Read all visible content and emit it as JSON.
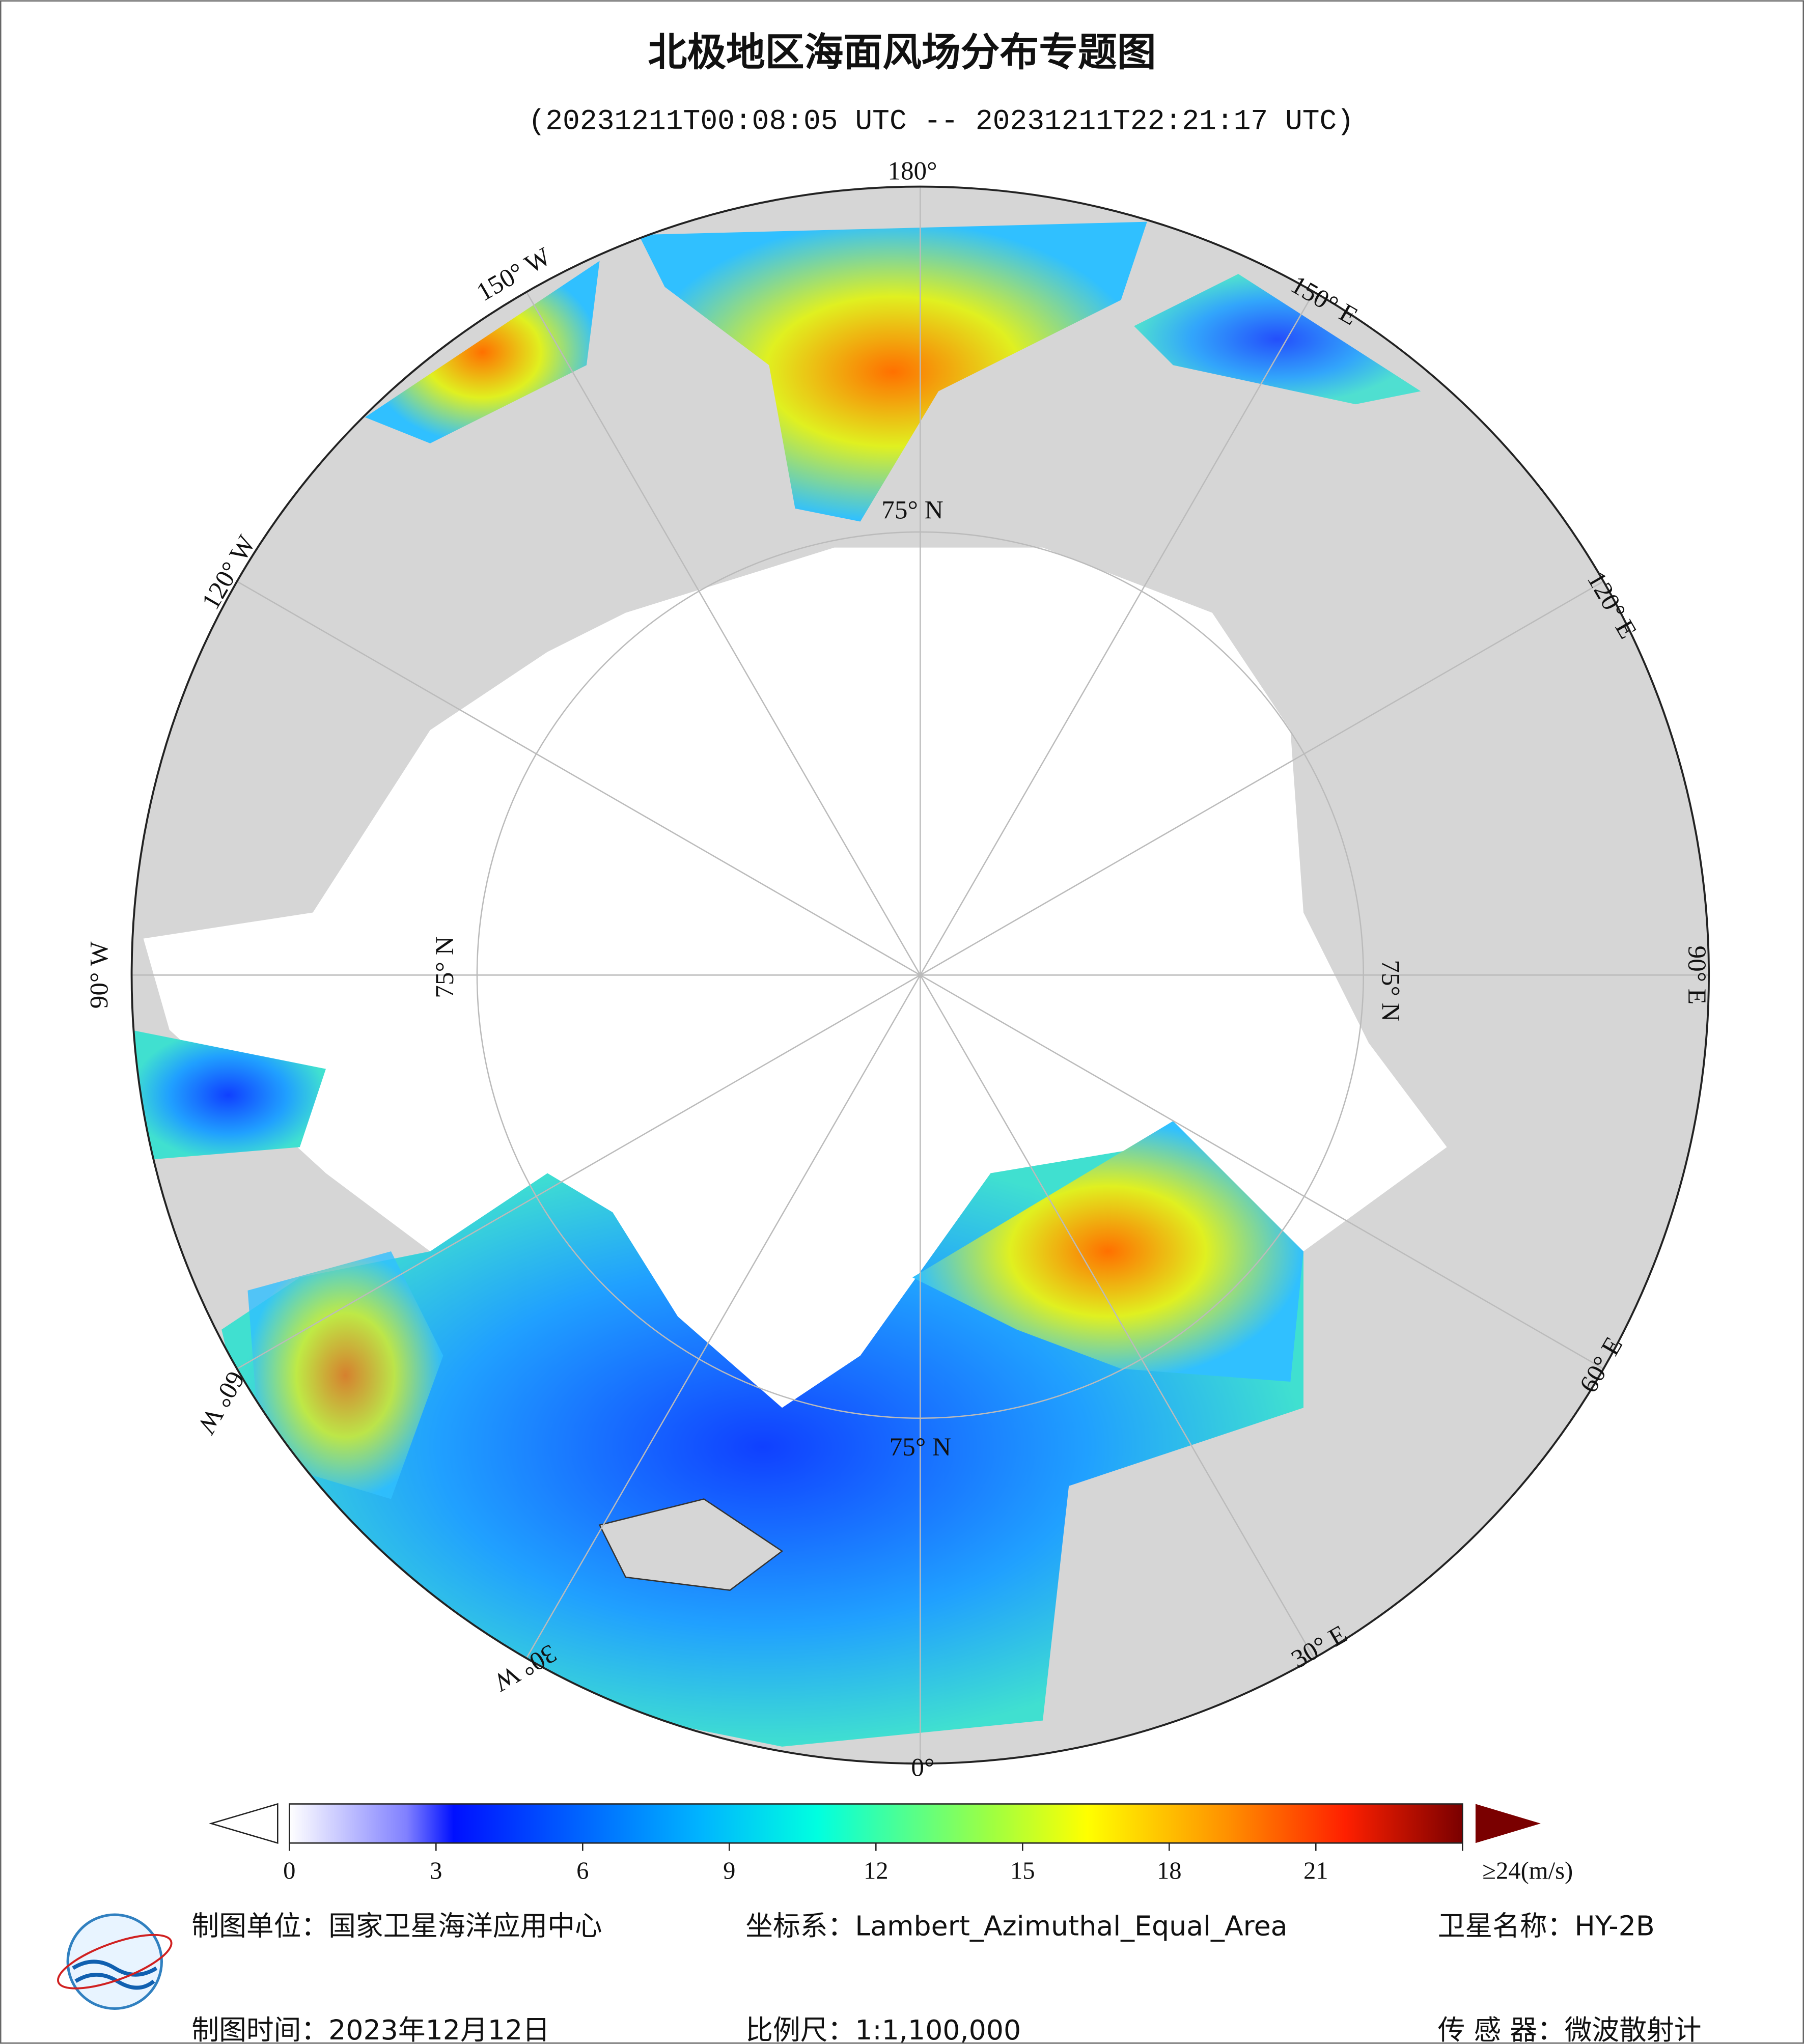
{
  "header": {
    "title": "北极地区海面风场分布专题图",
    "subtitle": "(20231211T00:08:05 UTC -- 20231211T22:21:17 UTC)"
  },
  "map": {
    "longitude_labels": [
      "180°",
      "150° W",
      "120° W",
      "90° W",
      "60° W",
      "30° W",
      "0°",
      "30° E",
      "60° E",
      "90° E",
      "120° E",
      "150° E"
    ],
    "latitude_labels": [
      "75° N",
      "75° N",
      "75° N",
      "75° N"
    ]
  },
  "colorbar": {
    "lim": [
      0,
      24
    ],
    "ticks": [
      0,
      3,
      6,
      9,
      12,
      15,
      18,
      21,
      {
        "value": 24,
        "label": "≥24(m/s)"
      }
    ]
  },
  "footer": {
    "unit": "制图单位：国家卫星海洋应用中心",
    "coordinate": "坐标系：Lambert_Azimuthal_Equal_Area",
    "satellite": "卫星名称：HY-2B",
    "date": "制图时间：2023年12月12日",
    "scale": "比例尺：1:1,100,000",
    "sensor": "传 感 器：微波散射计"
  }
}
